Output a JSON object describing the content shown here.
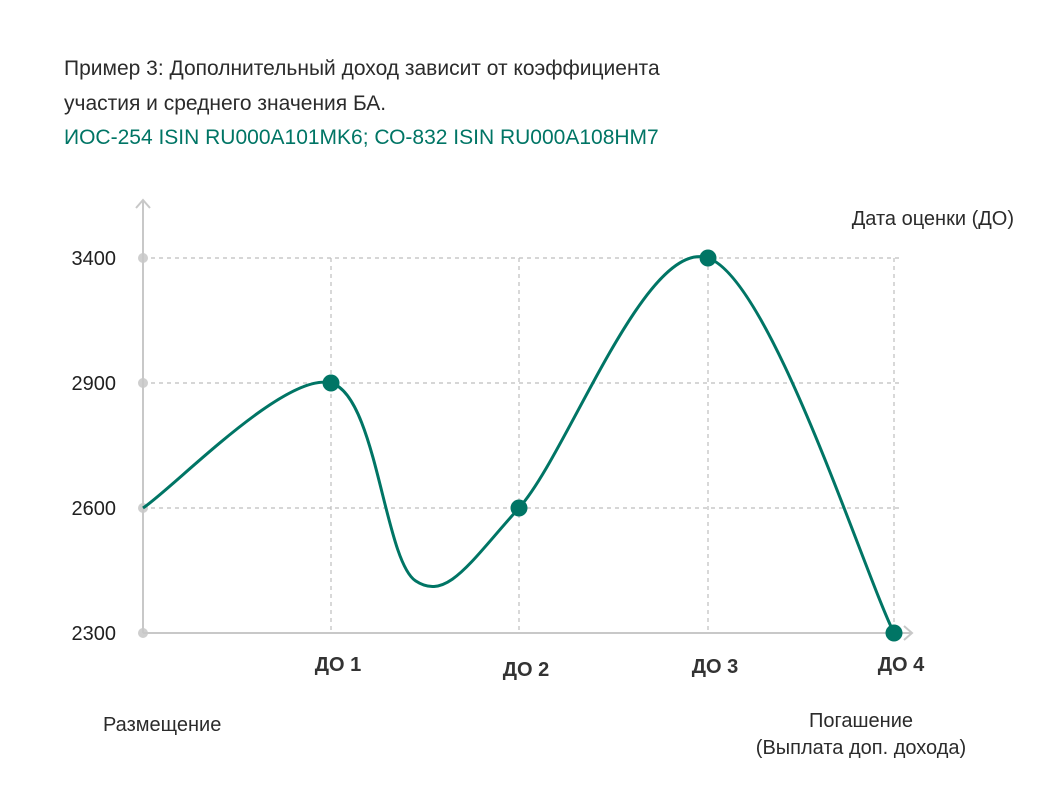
{
  "title_lines": [
    "Пример 3: Дополнительный доход зависит от коэффициента",
    "участия и среднего значения БА."
  ],
  "subtitle": "ИОС-254 ISIN RU000A101MK6; СО-832 ISIN RU000A108HM7",
  "colors": {
    "accent": "#007565",
    "grid": "#bdbdbd",
    "axis": "#c8c8c8",
    "text": "#2b2b2b"
  },
  "chart_data": {
    "type": "line",
    "title": "Пример 3: Дополнительный доход зависит от коэффициента участия и среднего значения БА.",
    "subtitle": "ИОС-254 ISIN RU000A101MK6; СО-832 ISIN RU000A108HM7",
    "xlabel": "Дата оценки (ДО)",
    "ylabel": "",
    "start_label": "Размещение",
    "end_label_lines": [
      "Погашение",
      "(Выплата доп. дохода)"
    ],
    "categories": [
      "Размещение",
      "ДО 1",
      "ДО 2",
      "ДО 3",
      "ДО 4"
    ],
    "x_tick_labels": [
      "ДО 1",
      "ДО 2",
      "ДО 3",
      "ДО 4"
    ],
    "y_ticks": [
      2300,
      2600,
      2900,
      3400
    ],
    "y_tick_labels": [
      "2300",
      "2600",
      "2900",
      "3400"
    ],
    "grid": true,
    "series": [
      {
        "name": "БА",
        "x": [
          0,
          1,
          2,
          3,
          4
        ],
        "values": [
          2600,
          2900,
          2600,
          3400,
          2300
        ],
        "markers": [
          false,
          true,
          true,
          true,
          true
        ]
      }
    ],
    "curve_dip": {
      "x": 1.45,
      "value": 2425
    }
  }
}
